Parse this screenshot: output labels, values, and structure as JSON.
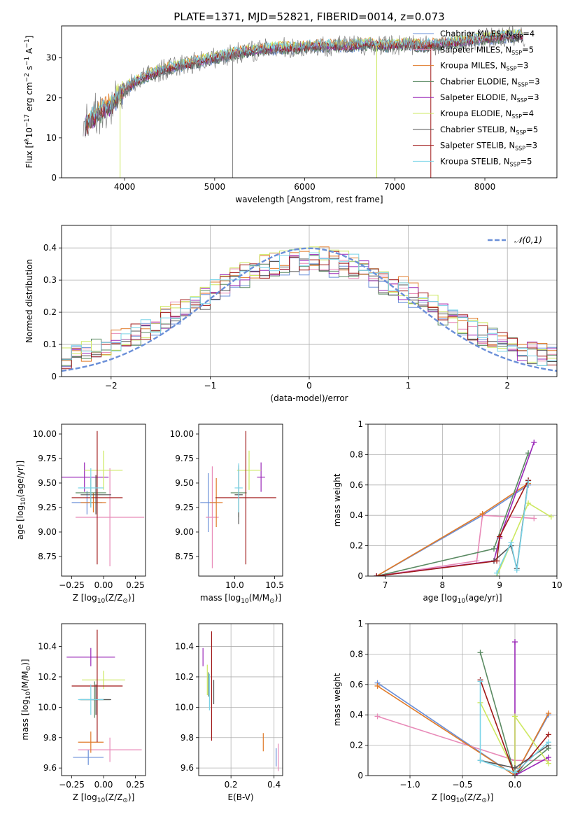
{
  "figure_title": "PLATE=1371, MJD=52821, FIBERID=0014, z=0.073",
  "colors": {
    "Chabrier MILES": "#6a8fd8",
    "Salpeter MILES": "#e88ab8",
    "Kroupa MILES": "#e07a28",
    "Chabrier ELODIE": "#5a8a62",
    "Salpeter ELODIE": "#9a28b8",
    "Kroupa ELODIE": "#cde860",
    "Chabrier STELIB": "#555555",
    "Salpeter STELIB": "#a01818",
    "Kroupa STELIB": "#7ad4e8",
    "data": "#808080",
    "normal_curve": "#6a8fd8",
    "grid": "#b0b0b0"
  },
  "chart_data": [
    {
      "id": "spectrum",
      "type": "line",
      "title": "PLATE=1371, MJD=52821, FIBERID=0014, z=0.073",
      "xlabel": "wavelength [Angstrom, rest frame]",
      "ylabel_parts": [
        "Flux [f",
        "λ",
        "10",
        "−17",
        " erg cm",
        "−2",
        " s",
        "−1",
        " A",
        "−1",
        "]"
      ],
      "xlim": [
        3300,
        8800
      ],
      "ylim": [
        0,
        38
      ],
      "xticks": [
        4000,
        5000,
        6000,
        7000,
        8000
      ],
      "yticks": [
        0,
        10,
        20,
        30
      ],
      "grid": false,
      "legend_position": "right",
      "legend": [
        {
          "label": "Chabrier MILES, N",
          "sub": "SSP",
          "tail": "=4",
          "model": "Chabrier MILES"
        },
        {
          "label": "Salpeter MILES, N",
          "sub": "SSP",
          "tail": "=5",
          "model": "Salpeter MILES"
        },
        {
          "label": "Kroupa MILES, N",
          "sub": "SSP",
          "tail": "=3",
          "model": "Kroupa MILES"
        },
        {
          "label": "Chabrier ELODIE, N",
          "sub": "SSP",
          "tail": "=3",
          "model": "Chabrier ELODIE"
        },
        {
          "label": "Salpeter ELODIE, N",
          "sub": "SSP",
          "tail": "=3",
          "model": "Salpeter ELODIE"
        },
        {
          "label": "Kroupa ELODIE, N",
          "sub": "SSP",
          "tail": "=4",
          "model": "Kroupa ELODIE"
        },
        {
          "label": "Chabrier STELIB, N",
          "sub": "SSP",
          "tail": "=5",
          "model": "Chabrier STELIB"
        },
        {
          "label": "Salpeter STELIB, N",
          "sub": "SSP",
          "tail": "=3",
          "model": "Salpeter STELIB"
        },
        {
          "label": "Kroupa STELIB, N",
          "sub": "SSP",
          "tail": "=5",
          "model": "Kroupa STELIB"
        }
      ],
      "continuum": {
        "x": [
          3550,
          3650,
          3750,
          3850,
          3950,
          4050,
          4150,
          4300,
          4500,
          4700,
          4900,
          5100,
          5300,
          5500,
          5700,
          5900,
          6100,
          6300,
          6500,
          6700,
          6900,
          7100,
          7300,
          7500,
          7700,
          7900,
          8100,
          8300,
          8400
        ],
        "y": [
          13,
          15,
          17,
          18,
          21,
          23,
          24.5,
          26,
          27.5,
          28.5,
          29.5,
          30.5,
          31.5,
          32,
          32.5,
          32.5,
          33,
          33,
          33,
          33.5,
          33,
          33.5,
          33,
          33.5,
          34,
          34.5,
          35,
          35.5,
          35.5
        ]
      },
      "spikes_down": [
        {
          "x": 3950,
          "y": 0
        },
        {
          "x": 5200,
          "y": 0
        },
        {
          "x": 6800,
          "y": 0
        },
        {
          "x": 7400,
          "y": 0
        }
      ]
    },
    {
      "id": "residual_hist",
      "type": "area",
      "xlabel": "(data-model)/error",
      "ylabel": "Normed distribution",
      "xlim": [
        -2.5,
        2.5
      ],
      "ylim": [
        0,
        0.47
      ],
      "xticks": [
        -2,
        -1,
        0,
        1,
        2
      ],
      "yticks": [
        0.0,
        0.1,
        0.2,
        0.3,
        0.4
      ],
      "grid": true,
      "legend_position": "top-right",
      "curve_label": "𝒩(0,1)",
      "curve": {
        "type": "normal",
        "mean": 0,
        "sigma": 1
      }
    },
    {
      "id": "age_vs_Z",
      "type": "scatter",
      "xlabel_parts": [
        "Z [log",
        "10",
        "(Z/Z",
        "⊙",
        ")]"
      ],
      "ylabel_parts": [
        "age  [log",
        "10",
        "(age/yr)]"
      ],
      "xlim": [
        -0.33,
        0.33
      ],
      "ylim": [
        8.55,
        10.1
      ],
      "xticks": [
        -0.25,
        0.0,
        0.25
      ],
      "xticklabels": [
        "−0.25",
        "0.00",
        "0.25"
      ],
      "yticks": [
        8.75,
        9.0,
        9.25,
        9.5,
        9.75,
        10.0
      ],
      "yticklabels": [
        "8.75",
        "9.00",
        "9.25",
        "9.50",
        "9.75",
        "10.00"
      ],
      "grid": false,
      "points": [
        {
          "model": "Chabrier MILES",
          "x": -0.13,
          "y": 9.3,
          "xerr": 0.12,
          "yerr": 0.12
        },
        {
          "model": "Salpeter MILES",
          "x": 0.05,
          "y": 9.15,
          "xerr": 0.27,
          "yerr": 0.5
        },
        {
          "model": "Kroupa MILES",
          "x": -0.08,
          "y": 9.3,
          "xerr": 0.1,
          "yerr": 0.1
        },
        {
          "model": "Chabrier ELODIE",
          "x": -0.1,
          "y": 9.4,
          "xerr": 0.12,
          "yerr": 0.15
        },
        {
          "model": "Salpeter ELODIE",
          "x": -0.15,
          "y": 9.56,
          "xerr": 0.19,
          "yerr": 0.15
        },
        {
          "model": "Kroupa ELODIE",
          "x": 0.0,
          "y": 9.63,
          "xerr": 0.15,
          "yerr": 0.2
        },
        {
          "model": "Chabrier STELIB",
          "x": -0.06,
          "y": 9.38,
          "xerr": 0.12,
          "yerr": 0.2
        },
        {
          "model": "Salpeter STELIB",
          "x": -0.05,
          "y": 9.35,
          "xerr": 0.2,
          "yerr": 0.68
        },
        {
          "model": "Kroupa STELIB",
          "x": -0.1,
          "y": 9.45,
          "xerr": 0.1,
          "yerr": 0.2
        }
      ]
    },
    {
      "id": "age_vs_mass",
      "type": "scatter",
      "xlabel_parts": [
        "mass [log",
        "10",
        "(M/M",
        "⊙",
        ")]"
      ],
      "xlim": [
        9.55,
        10.6
      ],
      "ylim": [
        8.55,
        10.1
      ],
      "xticks": [
        10.0,
        10.5
      ],
      "xticklabels": [
        "10.0",
        "10.5"
      ],
      "yticks": [
        8.75,
        9.0,
        9.25,
        9.5,
        9.75,
        10.0
      ],
      "yticklabels": [
        "8.75",
        "9.00",
        "9.25",
        "9.50",
        "9.75",
        "10.00"
      ],
      "grid": false,
      "points": [
        {
          "model": "Chabrier MILES",
          "x": 9.67,
          "y": 9.3,
          "xerr": 0.1,
          "yerr": 0.3
        },
        {
          "model": "Salpeter MILES",
          "x": 9.72,
          "y": 9.15,
          "xerr": 0.08,
          "yerr": 0.52
        },
        {
          "model": "Kroupa MILES",
          "x": 9.77,
          "y": 9.3,
          "xerr": 0.08,
          "yerr": 0.25
        },
        {
          "model": "Chabrier ELODIE",
          "x": 10.05,
          "y": 9.4,
          "xerr": 0.1,
          "yerr": 0.25
        },
        {
          "model": "Salpeter ELODIE",
          "x": 10.33,
          "y": 9.56,
          "xerr": 0.05,
          "yerr": 0.15
        },
        {
          "model": "Kroupa ELODIE",
          "x": 10.18,
          "y": 9.63,
          "xerr": 0.15,
          "yerr": 0.2
        },
        {
          "model": "Chabrier STELIB",
          "x": 10.05,
          "y": 9.38,
          "xerr": 0.05,
          "yerr": 0.3
        },
        {
          "model": "Salpeter STELIB",
          "x": 10.14,
          "y": 9.35,
          "xerr": 0.38,
          "yerr": 0.68
        },
        {
          "model": "Kroupa STELIB",
          "x": 10.05,
          "y": 9.45,
          "xerr": 0.05,
          "yerr": 0.25
        }
      ]
    },
    {
      "id": "weight_vs_age",
      "type": "line",
      "xlabel_parts": [
        "age  [log",
        "10",
        "(age/yr)]"
      ],
      "ylabel": "mass weight",
      "xlim": [
        6.7,
        10.0
      ],
      "ylim": [
        0.0,
        1.0
      ],
      "xticks": [
        7,
        8,
        9,
        10
      ],
      "yticks": [
        0.0,
        0.2,
        0.4,
        0.6,
        0.8,
        1.0
      ],
      "grid": true,
      "series": [
        {
          "model": "Chabrier MILES",
          "x": [
            6.85,
            8.7,
            9.5
          ],
          "y": [
            0.0,
            0.4,
            0.6
          ]
        },
        {
          "model": "Salpeter MILES",
          "x": [
            6.85,
            8.6,
            8.7,
            9.6
          ],
          "y": [
            0.0,
            0.1,
            0.4,
            0.38
          ]
        },
        {
          "model": "Kroupa MILES",
          "x": [
            6.85,
            8.7,
            9.5
          ],
          "y": [
            0.0,
            0.41,
            0.61
          ]
        },
        {
          "model": "Chabrier ELODIE",
          "x": [
            6.85,
            8.9,
            9.5
          ],
          "y": [
            0.0,
            0.18,
            0.81
          ]
        },
        {
          "model": "Salpeter ELODIE",
          "x": [
            6.85,
            8.9,
            9.0,
            9.6
          ],
          "y": [
            0.0,
            0.1,
            0.25,
            0.88
          ]
        },
        {
          "model": "Kroupa ELODIE",
          "x": [
            8.95,
            9.5,
            9.9
          ],
          "y": [
            0.0,
            0.48,
            0.39
          ]
        },
        {
          "model": "Chabrier STELIB",
          "x": [
            8.9,
            9.2,
            9.3,
            9.5
          ],
          "y": [
            0.1,
            0.2,
            0.05,
            0.63
          ]
        },
        {
          "model": "Salpeter STELIB",
          "x": [
            6.85,
            8.95,
            9.0,
            9.5
          ],
          "y": [
            0.0,
            0.1,
            0.26,
            0.63
          ]
        },
        {
          "model": "Kroupa STELIB",
          "x": [
            8.95,
            9.2,
            9.3,
            9.5
          ],
          "y": [
            0.02,
            0.22,
            0.04,
            0.62
          ]
        }
      ]
    },
    {
      "id": "mass_vs_Z",
      "type": "scatter",
      "xlabel_parts": [
        "Z [log",
        "10",
        "(Z/Z",
        "⊙",
        ")]"
      ],
      "ylabel_parts": [
        "mass [log",
        "10",
        "(M/M",
        "⊙",
        ")]"
      ],
      "xlim": [
        -0.33,
        0.33
      ],
      "ylim": [
        9.55,
        10.55
      ],
      "xticks": [
        -0.25,
        0.0,
        0.25
      ],
      "xticklabels": [
        "−0.25",
        "0.00",
        "0.25"
      ],
      "yticks": [
        9.6,
        9.8,
        10.0,
        10.2,
        10.4
      ],
      "yticklabels": [
        "9.6",
        "9.8",
        "10.0",
        "10.2",
        "10.4"
      ],
      "grid": false,
      "points": [
        {
          "model": "Chabrier MILES",
          "x": -0.12,
          "y": 9.67,
          "xerr": 0.12,
          "yerr": 0.05
        },
        {
          "model": "Salpeter MILES",
          "x": 0.05,
          "y": 9.72,
          "xerr": 0.25,
          "yerr": 0.08
        },
        {
          "model": "Kroupa MILES",
          "x": -0.1,
          "y": 9.77,
          "xerr": 0.1,
          "yerr": 0.07
        },
        {
          "model": "Chabrier ELODIE",
          "x": -0.07,
          "y": 10.05,
          "xerr": 0.12,
          "yerr": 0.12
        },
        {
          "model": "Salpeter ELODIE",
          "x": -0.1,
          "y": 10.33,
          "xerr": 0.19,
          "yerr": 0.06
        },
        {
          "model": "Kroupa ELODIE",
          "x": 0.0,
          "y": 10.18,
          "xerr": 0.17,
          "yerr": 0.06
        },
        {
          "model": "Chabrier STELIB",
          "x": -0.06,
          "y": 10.05,
          "xerr": 0.12,
          "yerr": 0.1
        },
        {
          "model": "Salpeter STELIB",
          "x": -0.05,
          "y": 10.14,
          "xerr": 0.2,
          "yerr": 0.37
        },
        {
          "model": "Kroupa STELIB",
          "x": -0.1,
          "y": 10.05,
          "xerr": 0.1,
          "yerr": 0.1
        }
      ]
    },
    {
      "id": "mass_vs_ebv",
      "type": "scatter",
      "xlabel": "E(B-V)",
      "xlim": [
        0.05,
        0.44
      ],
      "ylim": [
        9.55,
        10.55
      ],
      "xticks": [
        0.2,
        0.4
      ],
      "xticklabels": [
        "0.2",
        "0.4"
      ],
      "yticks": [
        9.6,
        9.8,
        10.0,
        10.2,
        10.4
      ],
      "yticklabels": [
        "9.6",
        "9.8",
        "10.0",
        "10.2",
        "10.4"
      ],
      "grid": true,
      "points": [
        {
          "model": "Chabrier MILES",
          "x": 0.41,
          "y": 9.67,
          "yerr": 0.06
        },
        {
          "model": "Salpeter MILES",
          "x": 0.42,
          "y": 9.67,
          "yerr": 0.09
        },
        {
          "model": "Kroupa MILES",
          "x": 0.35,
          "y": 9.77,
          "yerr": 0.06
        },
        {
          "model": "Chabrier ELODIE",
          "x": 0.095,
          "y": 10.15,
          "yerr": 0.08
        },
        {
          "model": "Salpeter ELODIE",
          "x": 0.07,
          "y": 10.33,
          "yerr": 0.06
        },
        {
          "model": "Kroupa ELODIE",
          "x": 0.09,
          "y": 10.18,
          "yerr": 0.1
        },
        {
          "model": "Chabrier STELIB",
          "x": 0.12,
          "y": 10.1,
          "yerr": 0.08
        },
        {
          "model": "Salpeter STELIB",
          "x": 0.11,
          "y": 10.14,
          "yerr": 0.36
        },
        {
          "model": "Kroupa STELIB",
          "x": 0.1,
          "y": 10.1,
          "yerr": 0.12
        }
      ]
    },
    {
      "id": "weight_vs_Z",
      "type": "line",
      "xlabel_parts": [
        "Z [log",
        "10",
        "(Z/Z",
        "⊙",
        ")]"
      ],
      "ylabel": "mass weight",
      "xlim": [
        -1.4,
        0.4
      ],
      "ylim": [
        0.0,
        1.0
      ],
      "xticks": [
        -1.0,
        -0.5,
        0.0
      ],
      "xticklabels": [
        "−1.0",
        "−0.5",
        "0.0"
      ],
      "yticks": [
        0.0,
        0.2,
        0.4,
        0.6,
        0.8,
        1.0
      ],
      "grid": true,
      "series": [
        {
          "model": "Chabrier MILES",
          "x": [
            -1.31,
            0.0,
            0.32
          ],
          "y": [
            0.61,
            0.0,
            0.4
          ]
        },
        {
          "model": "Salpeter MILES",
          "x": [
            -1.31,
            0.0,
            0.32
          ],
          "y": [
            0.39,
            0.1,
            0.1
          ]
        },
        {
          "model": "Kroupa MILES",
          "x": [
            -1.31,
            0.0,
            0.32
          ],
          "y": [
            0.59,
            0.0,
            0.41
          ]
        },
        {
          "model": "Chabrier ELODIE",
          "x": [
            -0.33,
            0.0,
            0.32
          ],
          "y": [
            0.81,
            0.0,
            0.18
          ]
        },
        {
          "model": "Salpeter ELODIE",
          "x": [
            0.0,
            0.0,
            0.32
          ],
          "y": [
            0.88,
            0.0,
            0.12
          ]
        },
        {
          "model": "Kroupa ELODIE",
          "x": [
            -0.33,
            0.0,
            0.0,
            0.32
          ],
          "y": [
            0.48,
            0.02,
            0.39,
            0.08
          ]
        },
        {
          "model": "Chabrier STELIB",
          "x": [
            -0.33,
            0.0,
            0.32
          ],
          "y": [
            0.1,
            0.05,
            0.2
          ]
        },
        {
          "model": "Salpeter STELIB",
          "x": [
            -0.33,
            0.0,
            0.32
          ],
          "y": [
            0.63,
            0.0,
            0.27
          ]
        },
        {
          "model": "Kroupa STELIB",
          "x": [
            -0.33,
            -0.33,
            0.0,
            0.32
          ],
          "y": [
            0.62,
            0.1,
            0.02,
            0.22
          ]
        }
      ]
    }
  ]
}
